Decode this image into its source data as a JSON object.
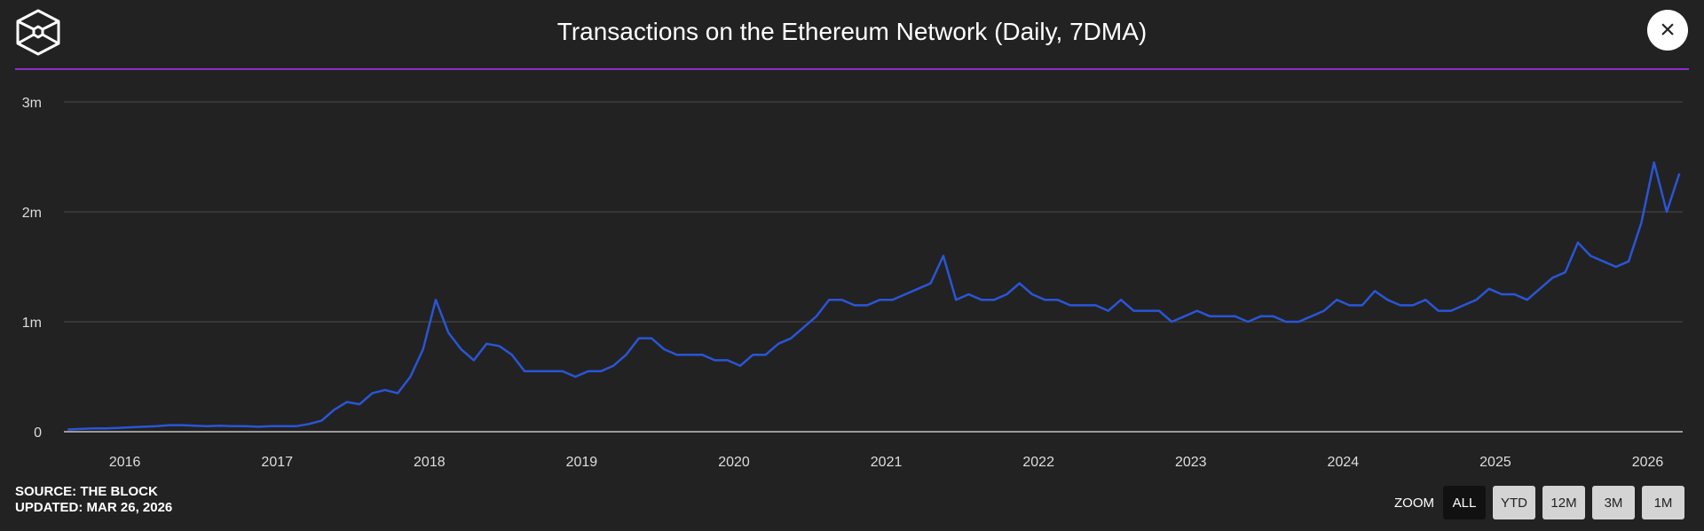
{
  "header": {
    "title": "Transactions on the Ethereum Network (Daily, 7DMA)",
    "close_label": "×"
  },
  "footer": {
    "source": "SOURCE: THE BLOCK",
    "updated": "UPDATED: MAR 26, 2026"
  },
  "zoom": {
    "label": "ZOOM",
    "options": [
      "ALL",
      "YTD",
      "12M",
      "3M",
      "1M"
    ],
    "active": "ALL"
  },
  "colors": {
    "line": "#2a55d6",
    "accent": "#8e2fc9",
    "background": "#222222"
  },
  "chart_data": {
    "type": "line",
    "title": "Transactions on the Ethereum Network (Daily, 7DMA)",
    "xlabel": "",
    "ylabel": "",
    "ylim": [
      0,
      3000000
    ],
    "xlim": [
      2015.6,
      2026.23
    ],
    "y_ticks": [
      {
        "v": 0,
        "label": "0"
      },
      {
        "v": 1000000,
        "label": "1m"
      },
      {
        "v": 2000000,
        "label": "2m"
      },
      {
        "v": 3000000,
        "label": "3m"
      }
    ],
    "x_ticks": [
      "2016",
      "2017",
      "2018",
      "2019",
      "2020",
      "2021",
      "2022",
      "2023",
      "2024",
      "2025",
      "2026"
    ],
    "grid": true,
    "series": [
      {
        "name": "Transactions (7DMA)",
        "start": "2015-08",
        "frequency": "monthly",
        "values_m": [
          0.02,
          0.025,
          0.03,
          0.03,
          0.035,
          0.04,
          0.045,
          0.05,
          0.06,
          0.06,
          0.055,
          0.05,
          0.055,
          0.05,
          0.05,
          0.045,
          0.05,
          0.05,
          0.05,
          0.07,
          0.1,
          0.2,
          0.27,
          0.25,
          0.35,
          0.38,
          0.35,
          0.5,
          0.75,
          1.2,
          0.9,
          0.75,
          0.65,
          0.8,
          0.78,
          0.7,
          0.55,
          0.55,
          0.55,
          0.55,
          0.5,
          0.55,
          0.55,
          0.6,
          0.7,
          0.85,
          0.85,
          0.75,
          0.7,
          0.7,
          0.7,
          0.65,
          0.65,
          0.6,
          0.7,
          0.7,
          0.8,
          0.85,
          0.95,
          1.05,
          1.2,
          1.2,
          1.15,
          1.15,
          1.2,
          1.2,
          1.25,
          1.3,
          1.35,
          1.6,
          1.2,
          1.25,
          1.2,
          1.2,
          1.25,
          1.35,
          1.25,
          1.2,
          1.2,
          1.15,
          1.15,
          1.15,
          1.1,
          1.2,
          1.1,
          1.1,
          1.1,
          1.0,
          1.05,
          1.1,
          1.05,
          1.05,
          1.05,
          1.0,
          1.05,
          1.05,
          1.0,
          1.0,
          1.05,
          1.1,
          1.2,
          1.15,
          1.15,
          1.28,
          1.2,
          1.15,
          1.15,
          1.2,
          1.1,
          1.1,
          1.15,
          1.2,
          1.3,
          1.25,
          1.25,
          1.2,
          1.3,
          1.4,
          1.45,
          1.72,
          1.6,
          1.55,
          1.5,
          1.55,
          1.9,
          2.45,
          2.0,
          2.35
        ]
      }
    ]
  }
}
